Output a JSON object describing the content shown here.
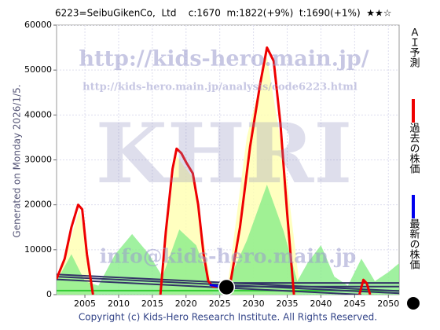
{
  "chart_data": {
    "type": "line",
    "title": "6223=SeibuGikenCo,  Ltd    c:1670  m:1822(+9%)  t:1690(+1%)  ★★☆",
    "left_note": "Generated on Monday 2026/1/5.",
    "footer": "Copyright (c) Kids-Hero Research Institute. All Rights Reserved.",
    "watermarks": [
      "http://kids-hero.main.jp/",
      "http://kids-hero.main.jp/analysis/code6223.html",
      "KHRI",
      "info@kids-hero.main.jp"
    ],
    "xlim": [
      2000.8,
      2051.6
    ],
    "xticks": [
      2005,
      2010,
      2015,
      2020,
      2025,
      2030,
      2035,
      2040,
      2045,
      2050
    ],
    "ylim": [
      0,
      60000
    ],
    "yticks": [
      0,
      10000,
      20000,
      30000,
      40000,
      50000,
      60000
    ],
    "grid": true,
    "areas": [
      {
        "color": "#ffffb0",
        "x": [
          2001,
          2004.2,
          2006.5,
          2016,
          2018.5,
          2021,
          2024,
          2026,
          2029,
          2032,
          2035,
          2037
        ],
        "values": [
          3000,
          19000,
          0,
          0,
          31000,
          26000,
          0,
          0,
          35000,
          53000,
          25000,
          0
        ]
      },
      {
        "color": "#88ee88",
        "x": [
          2000.8,
          2003,
          2005,
          2007,
          2009.5,
          2012,
          2014.5,
          2016.5,
          2019,
          2021.5,
          2023.5,
          2026,
          2029,
          2032,
          2034.5,
          2036.5,
          2038,
          2040,
          2042,
          2044,
          2046,
          2048,
          2050,
          2051.6
        ],
        "values": [
          3000,
          9000,
          3000,
          2000,
          9000,
          13500,
          9000,
          4000,
          14500,
          11000,
          3000,
          2000,
          12000,
          24500,
          14000,
          3000,
          7000,
          11000,
          4000,
          2000,
          8000,
          3000,
          5000,
          7000
        ]
      }
    ],
    "trend_lines": [
      {
        "color": "#33cc33",
        "x": [
          2000.8,
          2051.6
        ],
        "values": [
          900,
          900
        ]
      },
      {
        "color": "#333366",
        "x": [
          2000.8,
          2051.6
        ],
        "values": [
          4500,
          800
        ]
      },
      {
        "color": "#333366",
        "x": [
          2000.8,
          2051.6
        ],
        "values": [
          4000,
          300
        ]
      },
      {
        "color": "#333366",
        "x": [
          2000.8,
          2046
        ],
        "values": [
          3400,
          0
        ]
      },
      {
        "color": "#333366",
        "x": [
          2026,
          2051.6
        ],
        "values": [
          2600,
          2600
        ]
      },
      {
        "color": "#333366",
        "x": [
          2026,
          2051.6
        ],
        "values": [
          1800,
          1800
        ]
      }
    ],
    "series": [
      {
        "name": "ＡＩ予測",
        "color": "#ee0000",
        "x": [
          2000.8,
          2002,
          2003,
          2004,
          2004.6,
          2005.3,
          2006.2,
          2011,
          2016.2,
          2017,
          2018,
          2018.6,
          2019.3,
          2020,
          2021,
          2021.8,
          2022.6,
          2023.3,
          2024,
          2026.5,
          2028,
          2029.5,
          2031,
          2032,
          2033,
          2034,
          2035,
          2036,
          2040,
          2045.7,
          2046.3,
          2046.8,
          2047.3
        ],
        "values": [
          3500,
          8000,
          15000,
          20000,
          19000,
          9000,
          0,
          null,
          0,
          14000,
          28000,
          32500,
          31500,
          29500,
          27000,
          20000,
          9000,
          3000,
          1800,
          2000,
          15000,
          33000,
          47000,
          55000,
          52000,
          38000,
          18000,
          0,
          null,
          0,
          3300,
          2500,
          0
        ]
      },
      {
        "name": "過去の株価",
        "color": "#0000ee",
        "x": [
          2023.5,
          2025,
          2026
        ],
        "values": [
          2200,
          1800,
          1670
        ]
      },
      {
        "name": "最新の株価",
        "color": "#000000",
        "marker": "circle",
        "x": [
          2026
        ],
        "values": [
          1670
        ]
      }
    ]
  }
}
